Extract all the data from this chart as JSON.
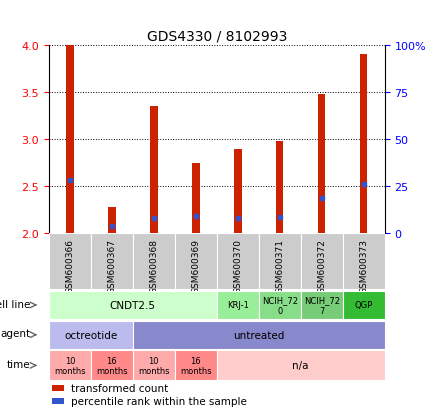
{
  "title": "GDS4330 / 8102993",
  "samples": [
    "GSM600366",
    "GSM600367",
    "GSM600368",
    "GSM600369",
    "GSM600370",
    "GSM600371",
    "GSM600372",
    "GSM600373"
  ],
  "bar_heights": [
    4.0,
    2.28,
    3.35,
    2.75,
    2.9,
    2.98,
    3.48,
    3.9
  ],
  "bar_base": 2.0,
  "blue_marker_y": [
    2.57,
    2.08,
    2.16,
    2.18,
    2.16,
    2.17,
    2.38,
    2.52
  ],
  "bar_color": "#CC2200",
  "blue_color": "#3355CC",
  "ylim": [
    2.0,
    4.0
  ],
  "yticks_left": [
    2.0,
    2.5,
    3.0,
    3.5,
    4.0
  ],
  "yticks_right": [
    0,
    25,
    50,
    75,
    100
  ],
  "cell_line_groups": [
    {
      "label": "CNDT2.5",
      "start": 0,
      "end": 4,
      "color": "#CCFFCC"
    },
    {
      "label": "KRJ-1",
      "start": 4,
      "end": 5,
      "color": "#99EE99"
    },
    {
      "label": "NCIH_72\n0",
      "start": 5,
      "end": 6,
      "color": "#88DD88"
    },
    {
      "label": "NCIH_72\n7",
      "start": 6,
      "end": 7,
      "color": "#77CC77"
    },
    {
      "label": "QGP",
      "start": 7,
      "end": 8,
      "color": "#33BB33"
    }
  ],
  "agent_groups": [
    {
      "label": "octreotide",
      "start": 0,
      "end": 2,
      "color": "#BBBBEE"
    },
    {
      "label": "untreated",
      "start": 2,
      "end": 8,
      "color": "#8888CC"
    }
  ],
  "time_groups": [
    {
      "label": "10\nmonths",
      "start": 0,
      "end": 1,
      "color": "#FFAAAA"
    },
    {
      "label": "16\nmonths",
      "start": 1,
      "end": 2,
      "color": "#FF8888"
    },
    {
      "label": "10\nmonths",
      "start": 2,
      "end": 3,
      "color": "#FFAAAA"
    },
    {
      "label": "16\nmonths",
      "start": 3,
      "end": 4,
      "color": "#FF8888"
    },
    {
      "label": "n/a",
      "start": 4,
      "end": 8,
      "color": "#FFCCCC"
    }
  ],
  "row_labels": [
    "cell line",
    "agent",
    "time"
  ],
  "legend_items": [
    {
      "label": "transformed count",
      "color": "#CC2200"
    },
    {
      "label": "percentile rank within the sample",
      "color": "#3355CC"
    }
  ],
  "bar_width": 0.18,
  "sample_label_fontsize": 6.5,
  "tick_fontsize": 8,
  "title_fontsize": 10,
  "row_fontsize": 7.5,
  "legend_fontsize": 7.5
}
